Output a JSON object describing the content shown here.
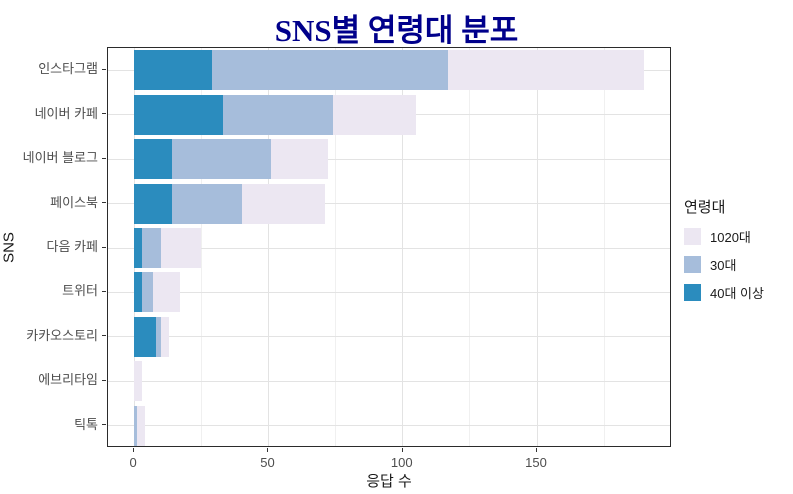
{
  "page_title": "SNS별 연령대 분포",
  "chart_data": {
    "type": "bar",
    "orientation": "horizontal",
    "stacked": true,
    "title": "SNS별 연령대 분포",
    "title_color": "#00008B",
    "xlabel": "응답 수",
    "ylabel": "SNS",
    "categories": [
      "인스타그램",
      "네이버 카페",
      "네이버 블로그",
      "페이스북",
      "다음 카페",
      "트위터",
      "카카오스토리",
      "에브리타임",
      "틱톡"
    ],
    "series": [
      {
        "name": "40대 이상",
        "color": "#2b8cbe",
        "values": [
          29,
          33,
          14,
          14,
          3,
          3,
          8,
          0,
          0
        ]
      },
      {
        "name": "30대",
        "color": "#a6bddb",
        "values": [
          88,
          41,
          37,
          26,
          7,
          4,
          2,
          0,
          1
        ]
      },
      {
        "name": "1020대",
        "color": "#ece7f2",
        "values": [
          73,
          31,
          21,
          31,
          15,
          10,
          3,
          3,
          3
        ]
      }
    ],
    "totals": [
      190,
      105,
      72,
      71,
      25,
      17,
      13,
      3,
      4
    ],
    "x_ticks": [
      0,
      50,
      100,
      150
    ],
    "x_minor_gridlines": [
      25,
      75,
      125,
      175
    ],
    "xlim": [
      -9.75,
      200.25
    ],
    "grid": "vertical major+minor, horizontal major at category centers",
    "panel_border_color": "#2b2b2b",
    "legend": {
      "title": "연령대",
      "position": "right",
      "entries": [
        {
          "label": "1020대",
          "color": "#ece7f2"
        },
        {
          "label": "30대",
          "color": "#a6bddb"
        },
        {
          "label": "40대 이상",
          "color": "#2b8cbe"
        }
      ]
    }
  }
}
